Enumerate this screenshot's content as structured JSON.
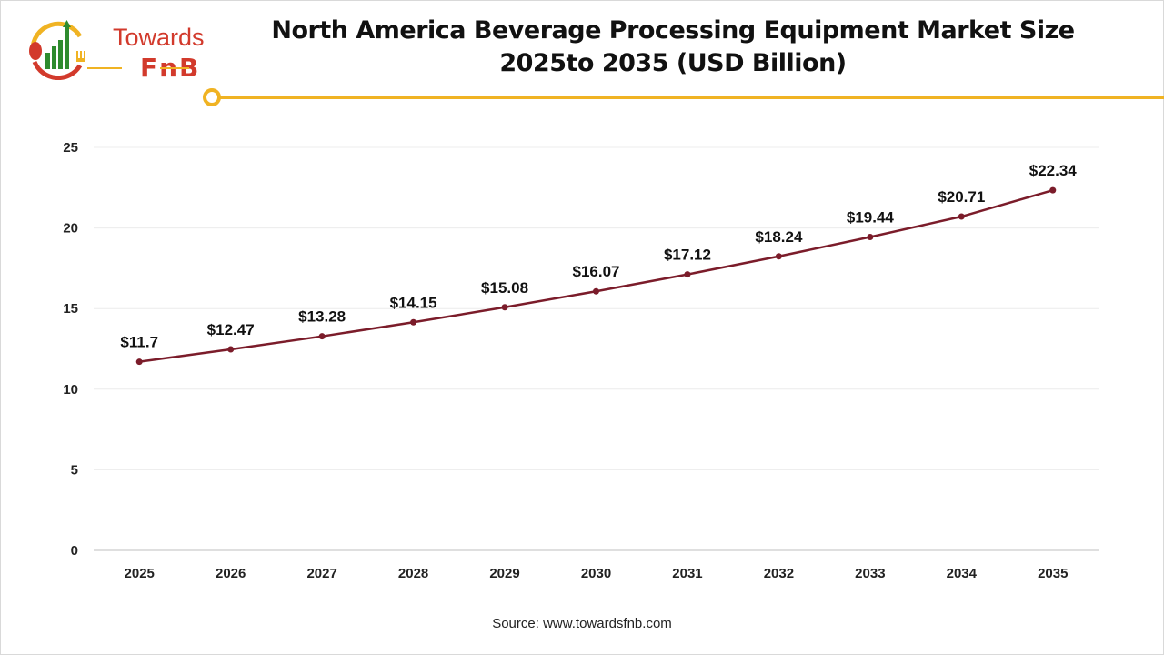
{
  "logo": {
    "line1": "Towards",
    "line2": "FnB"
  },
  "colors": {
    "line": "#7b1c2a",
    "accent": "#f0b323",
    "brand_red": "#d23a2c",
    "brand_green": "#2e8b2e"
  },
  "chart_data": {
    "type": "line",
    "title": "North America Beverage Processing Equipment Market Size 2025to 2035 (USD Billion)",
    "title_line1": "North America Beverage Processing Equipment Market Size",
    "title_line2": "2025to 2035 (USD Billion)",
    "categories": [
      "2025",
      "2026",
      "2027",
      "2028",
      "2029",
      "2030",
      "2031",
      "2032",
      "2033",
      "2034",
      "2035"
    ],
    "values": [
      11.7,
      12.47,
      13.28,
      14.15,
      15.08,
      16.07,
      17.12,
      18.24,
      19.44,
      20.71,
      22.34
    ],
    "data_labels": [
      "$11.7",
      "$12.47",
      "$13.28",
      "$14.15",
      "$15.08",
      "$16.07",
      "$17.12",
      "$18.24",
      "$19.44",
      "$20.71",
      "$22.34"
    ],
    "y_ticks": [
      0,
      5,
      10,
      15,
      20,
      25
    ],
    "ylim": [
      0,
      25
    ],
    "grid": true,
    "xlabel": "",
    "ylabel": ""
  },
  "source": "Source: www.towardsfnb.com"
}
